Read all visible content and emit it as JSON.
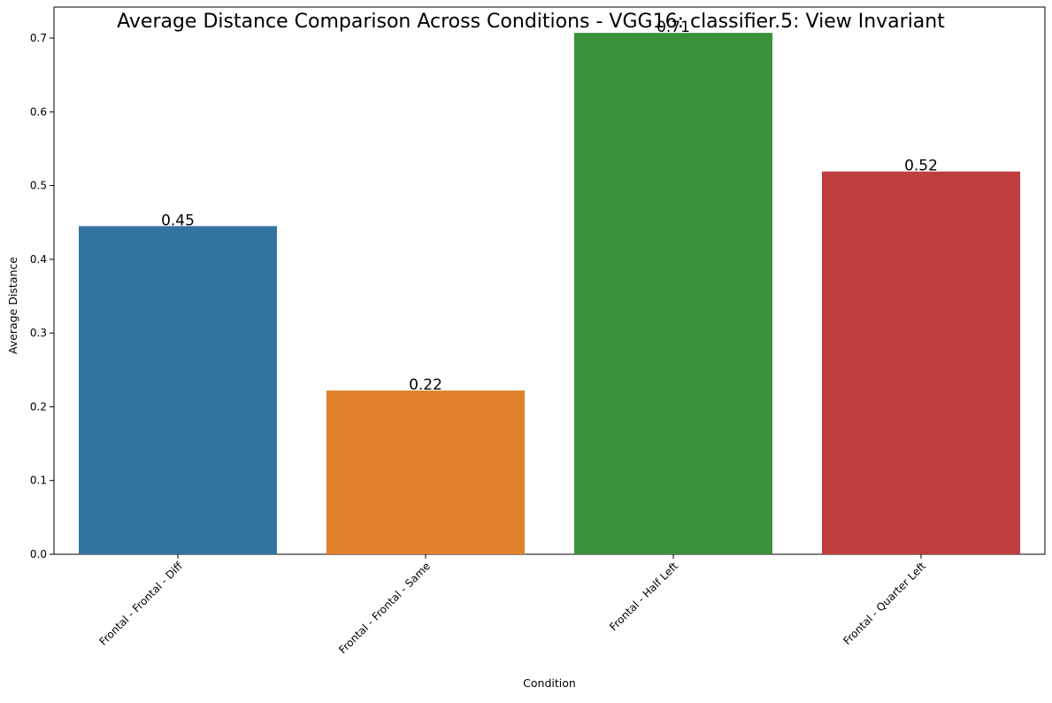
{
  "chart_data": {
    "type": "bar",
    "title": "Average Distance Comparison Across Conditions - VGG16: classifier.5: View Invariant",
    "xlabel": "Condition",
    "ylabel": "Average Distance",
    "categories": [
      "Frontal - Frontal - Diff",
      "Frontal - Frontal - Same",
      "Frontal - Half Left",
      "Frontal - Quarter Left"
    ],
    "values": [
      0.445,
      0.222,
      0.707,
      0.519
    ],
    "value_labels": [
      "0.45",
      "0.22",
      "0.71",
      "0.52"
    ],
    "colors": [
      "#3274a1",
      "#e1812c",
      "#3a923a",
      "#c03d3e"
    ],
    "ylim": [
      0,
      0.742
    ],
    "yticks": [
      0.0,
      0.1,
      0.2,
      0.3,
      0.4,
      0.5,
      0.6,
      0.7
    ],
    "ytick_labels": [
      "0.0",
      "0.1",
      "0.2",
      "0.3",
      "0.4",
      "0.5",
      "0.6",
      "0.7"
    ],
    "grid": false,
    "legend": "none"
  }
}
